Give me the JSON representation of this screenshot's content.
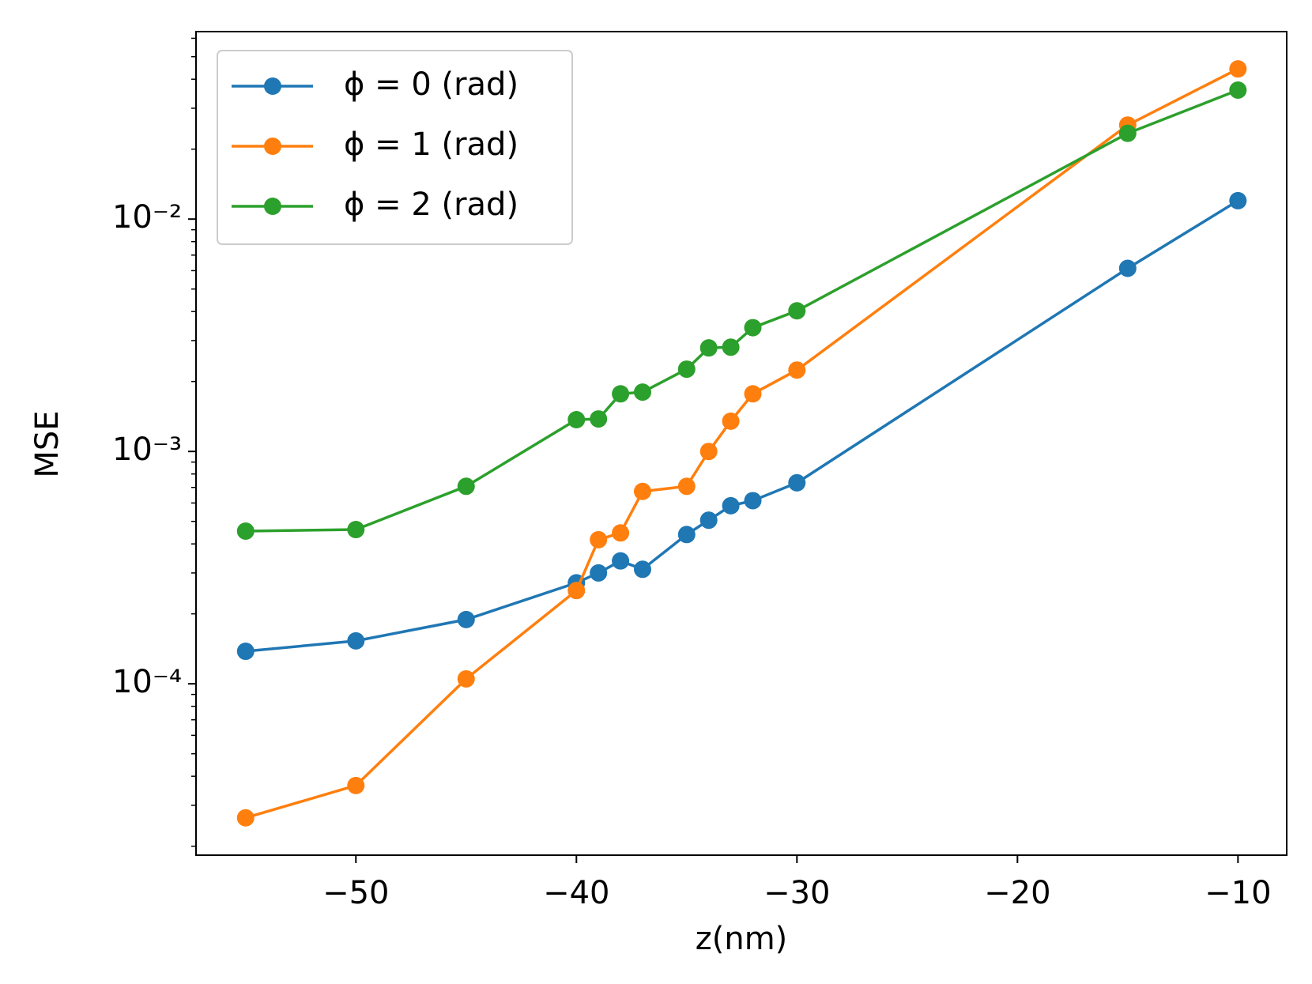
{
  "chart_data": {
    "type": "line",
    "xlabel": "z(nm)",
    "ylabel": "MSE",
    "x": [
      -55,
      -50,
      -45,
      -40,
      -39,
      -38,
      -37,
      -35,
      -34,
      -33,
      -32,
      -30,
      -15,
      -10
    ],
    "series": [
      {
        "name": "ϕ = 0 (rad)",
        "color": "#1f77b4",
        "values": [
          0.000138,
          0.000153,
          0.000189,
          0.000272,
          0.0003,
          0.000338,
          0.000311,
          0.000439,
          0.000506,
          0.000584,
          0.000614,
          0.000733,
          0.00614,
          0.012
        ]
      },
      {
        "name": "ϕ = 1 (rad)",
        "color": "#ff7f0e",
        "values": [
          2.65e-05,
          3.65e-05,
          0.000105,
          0.000252,
          0.000417,
          0.000446,
          0.000673,
          0.000708,
          0.001,
          0.00135,
          0.00177,
          0.00224,
          0.0254,
          0.0443
        ]
      },
      {
        "name": "ϕ = 2 (rad)",
        "color": "#2ca02c",
        "values": [
          0.000454,
          0.000461,
          0.000708,
          0.00137,
          0.00138,
          0.00177,
          0.0018,
          0.00226,
          0.00279,
          0.00281,
          0.00341,
          0.00403,
          0.0234,
          0.0359
        ]
      }
    ],
    "xlim": [
      -57.25,
      -7.79
    ],
    "xticks": [
      {
        "value": -50,
        "label": "−50"
      },
      {
        "value": -40,
        "label": "−40"
      },
      {
        "value": -30,
        "label": "−30"
      },
      {
        "value": -20,
        "label": "−20"
      },
      {
        "value": -10,
        "label": "−10"
      }
    ],
    "ylim": [
      1.83e-05,
      0.0641
    ],
    "yticks": [
      {
        "value": 0.0001,
        "label": "10⁻⁴"
      },
      {
        "value": 0.001,
        "label": "10⁻³"
      },
      {
        "value": 0.01,
        "label": "10⁻²"
      }
    ],
    "ylog": true,
    "grid": false,
    "legend": "upper left"
  }
}
